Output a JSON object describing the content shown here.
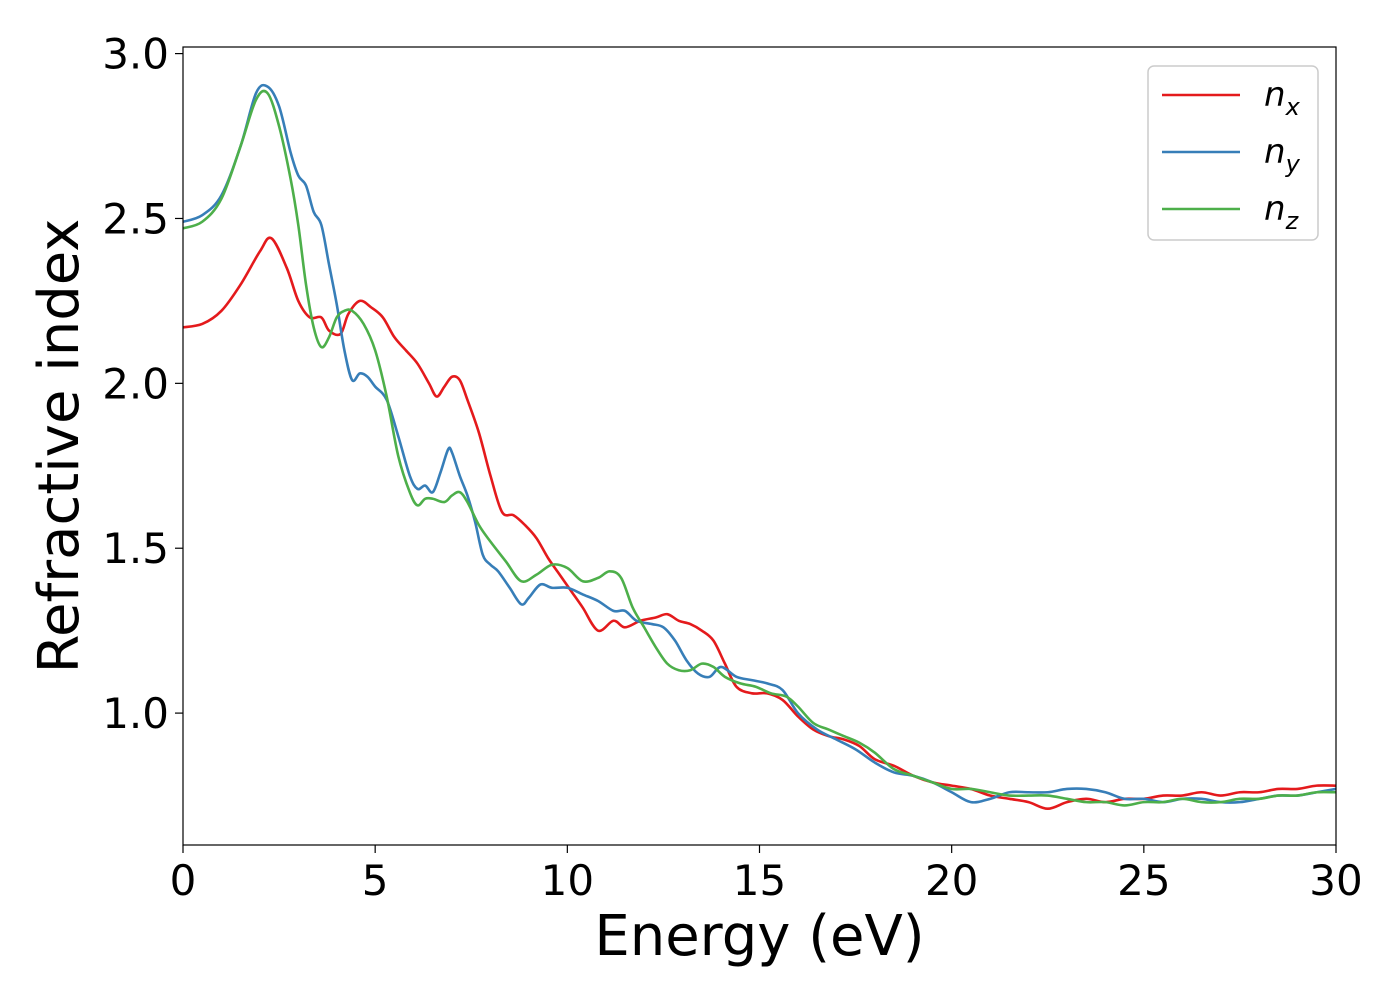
{
  "chart_data": {
    "type": "line",
    "xlabel": "Energy (eV)",
    "ylabel": "Refractive index",
    "xlim": [
      0,
      30
    ],
    "ylim": [
      0.6,
      3.02
    ],
    "xticks": [
      0,
      5,
      10,
      15,
      20,
      25,
      30
    ],
    "xtick_labels": [
      "0",
      "5",
      "10",
      "15",
      "20",
      "25",
      "30"
    ],
    "yticks": [
      1.0,
      1.5,
      2.0,
      2.5,
      3.0
    ],
    "ytick_labels": [
      "1.0",
      "1.5",
      "2.0",
      "2.5",
      "3.0"
    ],
    "grid": false,
    "legend_position": "top-right",
    "series": [
      {
        "name": "n",
        "subscript": "x",
        "color": "#e41a1c",
        "x": [
          0,
          0.5,
          1.0,
          1.5,
          2.0,
          2.3,
          2.7,
          3.0,
          3.3,
          3.6,
          3.8,
          4.1,
          4.3,
          4.6,
          4.9,
          5.2,
          5.5,
          5.8,
          6.1,
          6.4,
          6.6,
          6.8,
          7.0,
          7.2,
          7.4,
          7.7,
          8.0,
          8.3,
          8.6,
          8.9,
          9.2,
          9.5,
          9.8,
          10.1,
          10.4,
          10.8,
          11.2,
          11.5,
          11.9,
          12.3,
          12.6,
          12.9,
          13.2,
          13.5,
          13.8,
          14.1,
          14.4,
          14.8,
          15.2,
          15.6,
          16.0,
          16.4,
          16.8,
          17.2,
          17.6,
          18.0,
          18.5,
          19.0,
          19.5,
          20.0,
          20.5,
          21.0,
          21.5,
          22.0,
          22.5,
          23.0,
          23.5,
          24.0,
          24.5,
          25.0,
          25.5,
          26.0,
          26.5,
          27.0,
          27.5,
          28.0,
          28.5,
          29.0,
          29.5,
          30.0
        ],
        "y": [
          2.17,
          2.18,
          2.22,
          2.3,
          2.4,
          2.44,
          2.35,
          2.25,
          2.2,
          2.2,
          2.16,
          2.15,
          2.21,
          2.25,
          2.23,
          2.2,
          2.14,
          2.1,
          2.06,
          2.0,
          1.96,
          1.99,
          2.02,
          2.01,
          1.95,
          1.85,
          1.72,
          1.61,
          1.6,
          1.57,
          1.53,
          1.47,
          1.42,
          1.37,
          1.32,
          1.25,
          1.28,
          1.26,
          1.28,
          1.29,
          1.3,
          1.28,
          1.27,
          1.25,
          1.22,
          1.15,
          1.08,
          1.06,
          1.06,
          1.04,
          0.99,
          0.95,
          0.93,
          0.92,
          0.9,
          0.86,
          0.84,
          0.81,
          0.79,
          0.78,
          0.77,
          0.75,
          0.74,
          0.73,
          0.71,
          0.73,
          0.74,
          0.73,
          0.74,
          0.74,
          0.75,
          0.75,
          0.76,
          0.75,
          0.76,
          0.76,
          0.77,
          0.77,
          0.78,
          0.78
        ]
      },
      {
        "name": "n",
        "subscript": "y",
        "color": "#377eb8",
        "x": [
          0,
          0.5,
          1.0,
          1.5,
          1.9,
          2.2,
          2.5,
          2.8,
          3.0,
          3.2,
          3.4,
          3.6,
          3.8,
          4.0,
          4.2,
          4.4,
          4.6,
          4.8,
          5.0,
          5.3,
          5.6,
          5.9,
          6.1,
          6.3,
          6.5,
          6.7,
          6.9,
          7.0,
          7.2,
          7.4,
          7.6,
          7.8,
          8.0,
          8.2,
          8.5,
          8.8,
          9.0,
          9.3,
          9.6,
          10.0,
          10.4,
          10.8,
          11.2,
          11.5,
          11.8,
          12.2,
          12.5,
          12.8,
          13.1,
          13.4,
          13.7,
          14.0,
          14.4,
          14.8,
          15.2,
          15.6,
          16.0,
          16.5,
          17.0,
          17.5,
          18.0,
          18.5,
          19.0,
          19.5,
          20.0,
          20.5,
          21.0,
          21.5,
          22.0,
          22.5,
          23.0,
          23.5,
          24.0,
          24.5,
          25.0,
          25.5,
          26.0,
          26.5,
          27.0,
          27.5,
          28.0,
          28.5,
          29.0,
          29.5,
          30.0
        ],
        "y": [
          2.49,
          2.51,
          2.57,
          2.72,
          2.88,
          2.9,
          2.84,
          2.7,
          2.63,
          2.6,
          2.52,
          2.48,
          2.36,
          2.24,
          2.1,
          2.01,
          2.03,
          2.02,
          1.99,
          1.95,
          1.84,
          1.72,
          1.68,
          1.69,
          1.67,
          1.73,
          1.8,
          1.79,
          1.72,
          1.66,
          1.58,
          1.48,
          1.45,
          1.43,
          1.38,
          1.33,
          1.35,
          1.39,
          1.38,
          1.38,
          1.36,
          1.34,
          1.31,
          1.31,
          1.28,
          1.27,
          1.26,
          1.22,
          1.16,
          1.12,
          1.11,
          1.14,
          1.11,
          1.1,
          1.09,
          1.07,
          1.0,
          0.95,
          0.92,
          0.89,
          0.85,
          0.82,
          0.81,
          0.79,
          0.76,
          0.73,
          0.74,
          0.76,
          0.76,
          0.76,
          0.77,
          0.77,
          0.76,
          0.74,
          0.74,
          0.73,
          0.74,
          0.74,
          0.73,
          0.73,
          0.74,
          0.75,
          0.75,
          0.76,
          0.77
        ]
      },
      {
        "name": "n",
        "subscript": "z",
        "color": "#4daf4a",
        "x": [
          0,
          0.5,
          1.0,
          1.5,
          1.9,
          2.2,
          2.5,
          2.8,
          3.0,
          3.2,
          3.4,
          3.6,
          3.8,
          4.0,
          4.2,
          4.4,
          4.7,
          5.0,
          5.3,
          5.6,
          5.9,
          6.1,
          6.3,
          6.5,
          6.8,
          7.0,
          7.2,
          7.4,
          7.7,
          8.0,
          8.4,
          8.8,
          9.2,
          9.6,
          10.0,
          10.4,
          10.8,
          11.1,
          11.4,
          11.7,
          12.0,
          12.3,
          12.6,
          12.9,
          13.2,
          13.5,
          13.8,
          14.1,
          14.5,
          14.9,
          15.3,
          15.7,
          16.0,
          16.4,
          16.8,
          17.2,
          17.6,
          18.0,
          18.5,
          19.0,
          19.5,
          20.0,
          20.5,
          21.0,
          21.5,
          22.0,
          22.5,
          23.0,
          23.5,
          24.0,
          24.5,
          25.0,
          25.5,
          26.0,
          26.5,
          27.0,
          27.5,
          28.0,
          28.5,
          29.0,
          29.5,
          30.0
        ],
        "y": [
          2.47,
          2.49,
          2.56,
          2.72,
          2.86,
          2.88,
          2.78,
          2.62,
          2.48,
          2.3,
          2.17,
          2.11,
          2.14,
          2.2,
          2.22,
          2.22,
          2.18,
          2.1,
          1.96,
          1.78,
          1.67,
          1.63,
          1.65,
          1.65,
          1.64,
          1.66,
          1.67,
          1.64,
          1.57,
          1.52,
          1.46,
          1.4,
          1.42,
          1.45,
          1.44,
          1.4,
          1.41,
          1.43,
          1.41,
          1.32,
          1.26,
          1.2,
          1.15,
          1.13,
          1.13,
          1.15,
          1.14,
          1.11,
          1.09,
          1.08,
          1.06,
          1.05,
          1.02,
          0.97,
          0.95,
          0.93,
          0.91,
          0.88,
          0.83,
          0.81,
          0.79,
          0.77,
          0.77,
          0.76,
          0.75,
          0.75,
          0.75,
          0.74,
          0.73,
          0.73,
          0.72,
          0.73,
          0.73,
          0.74,
          0.73,
          0.73,
          0.74,
          0.74,
          0.75,
          0.75,
          0.76,
          0.76
        ]
      }
    ]
  }
}
